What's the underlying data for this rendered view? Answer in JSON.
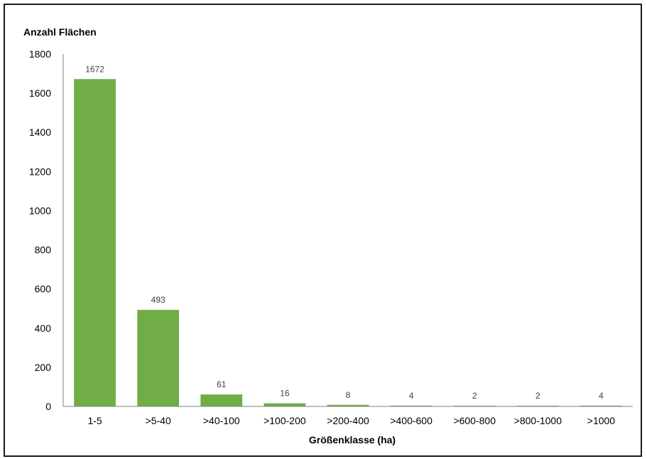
{
  "chart_data": {
    "type": "bar",
    "title": "",
    "ylabel": "Anzahl Flächen",
    "xlabel": "Größenklasse (ha)",
    "categories": [
      "1-5",
      ">5-40",
      ">40-100",
      ">100-200",
      ">200-400",
      ">400-600",
      ">600-800",
      ">800-1000",
      ">1000"
    ],
    "values": [
      1672,
      493,
      61,
      16,
      8,
      4,
      2,
      2,
      4
    ],
    "data_labels": [
      "1672",
      "493",
      "61",
      "16",
      "8",
      "4",
      "2",
      "2",
      "4"
    ],
    "ylim": [
      0,
      1800
    ],
    "yticks": [
      "0",
      "200",
      "400",
      "600",
      "800",
      "1000",
      "1200",
      "1400",
      "1600",
      "1800"
    ],
    "grid": false,
    "legend": "none",
    "bar_color": "#70ad47"
  }
}
